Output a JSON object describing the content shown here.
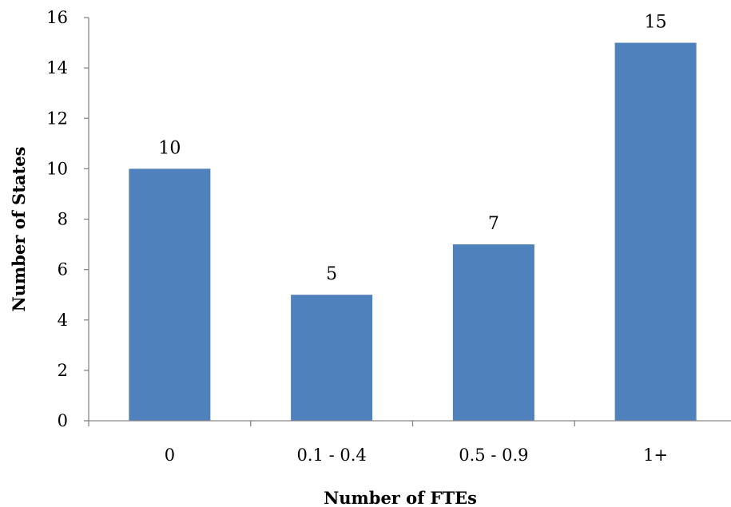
{
  "chart_data": {
    "type": "bar",
    "categories": [
      "0",
      "0.1 - 0.4",
      "0.5 - 0.9",
      "1+"
    ],
    "values": [
      10,
      5,
      7,
      15
    ],
    "data_labels": [
      "10",
      "5",
      "7",
      "15"
    ],
    "xlabel": "Number of FTEs",
    "ylabel": "Number of States",
    "ylim": [
      0,
      16
    ],
    "yticks": [
      "0",
      "2",
      "4",
      "6",
      "8",
      "10",
      "12",
      "14",
      "16"
    ],
    "grid": false,
    "legend": "none",
    "colors": {
      "bar": "#4f81bd",
      "axis": "#868686"
    }
  }
}
